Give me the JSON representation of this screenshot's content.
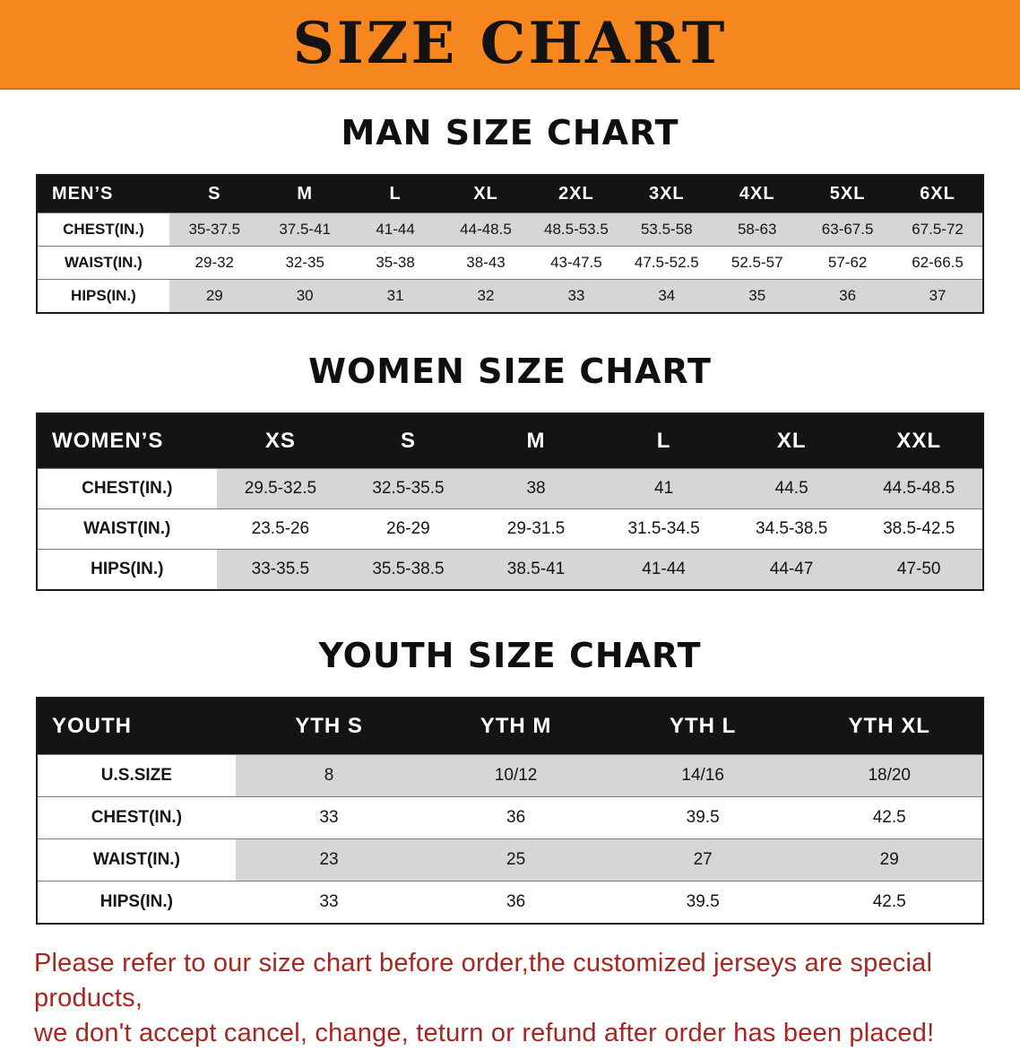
{
  "banner": {
    "title": "SIZE CHART"
  },
  "colors": {
    "banner_bg": "#f6871f",
    "header_bg": "#141414",
    "stripe": "#d6d6d6",
    "disclaimer": "#ab241f"
  },
  "sections": [
    {
      "heading": "MAN SIZE CHART",
      "table": {
        "header": [
          "MEN’S",
          "S",
          "M",
          "L",
          "XL",
          "2XL",
          "3XL",
          "4XL",
          "5XL",
          "6XL"
        ],
        "rows": [
          [
            "CHEST(IN.)",
            "35-37.5",
            "37.5-41",
            "41-44",
            "44-48.5",
            "48.5-53.5",
            "53.5-58",
            "58-63",
            "63-67.5",
            "67.5-72"
          ],
          [
            "WAIST(IN.)",
            "29-32",
            "32-35",
            "35-38",
            "38-43",
            "43-47.5",
            "47.5-52.5",
            "52.5-57",
            "57-62",
            "62-66.5"
          ],
          [
            "HIPS(IN.)",
            "29",
            "30",
            "31",
            "32",
            "33",
            "34",
            "35",
            "36",
            "37"
          ]
        ]
      }
    },
    {
      "heading": "WOMEN SIZE CHART",
      "table": {
        "header": [
          "WOMEN’S",
          "XS",
          "S",
          "M",
          "L",
          "XL",
          "XXL"
        ],
        "rows": [
          [
            "CHEST(IN.)",
            "29.5-32.5",
            "32.5-35.5",
            "38",
            "41",
            "44.5",
            "44.5-48.5"
          ],
          [
            "WAIST(IN.)",
            "23.5-26",
            "26-29",
            "29-31.5",
            "31.5-34.5",
            "34.5-38.5",
            "38.5-42.5"
          ],
          [
            "HIPS(IN.)",
            "33-35.5",
            "35.5-38.5",
            "38.5-41",
            "41-44",
            "44-47",
            "47-50"
          ]
        ]
      }
    },
    {
      "heading": "YOUTH SIZE CHART",
      "table": {
        "header": [
          "YOUTH",
          "YTH S",
          "YTH M",
          "YTH L",
          "YTH XL"
        ],
        "rows": [
          [
            "U.S.SIZE",
            "8",
            "10/12",
            "14/16",
            "18/20"
          ],
          [
            "CHEST(IN.)",
            "33",
            "36",
            "39.5",
            "42.5"
          ],
          [
            "WAIST(IN.)",
            "23",
            "25",
            "27",
            "29"
          ],
          [
            "HIPS(IN.)",
            "33",
            "36",
            "39.5",
            "42.5"
          ]
        ]
      }
    }
  ],
  "disclaimer": {
    "line1": "Please refer to our size chart before order,the customized jerseys are special products,",
    "line2": "we don't accept cancel, change, teturn or refund after order has been placed!"
  }
}
